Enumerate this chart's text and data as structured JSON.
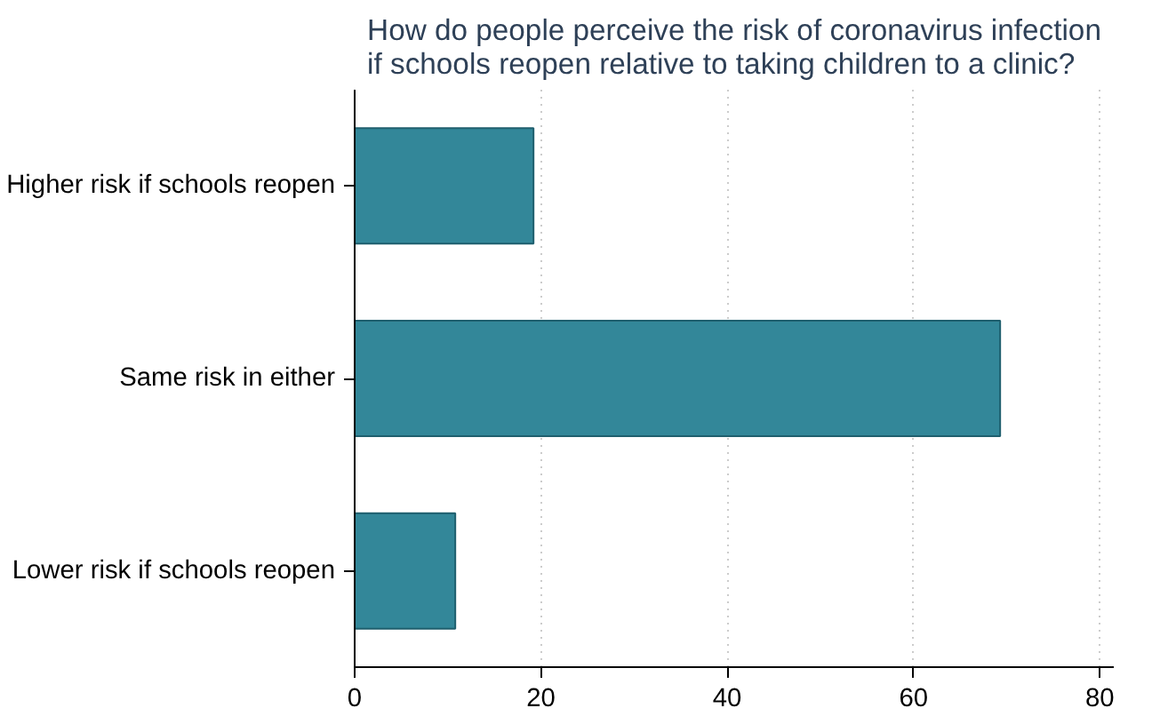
{
  "chart_data": {
    "type": "bar",
    "orientation": "horizontal",
    "title": "How do people perceive the risk of coronavirus infection\nif schools reopen relative to taking children to a clinic?",
    "categories": [
      "Higher risk if schools reopen",
      "Same risk in either",
      "Lower risk if schools reopen"
    ],
    "values": [
      19.2,
      69.3,
      10.8
    ],
    "color": "#338799",
    "xlim": [
      0,
      81.5
    ],
    "xticks": [
      0,
      20,
      40,
      60,
      80
    ],
    "grid": "x"
  }
}
